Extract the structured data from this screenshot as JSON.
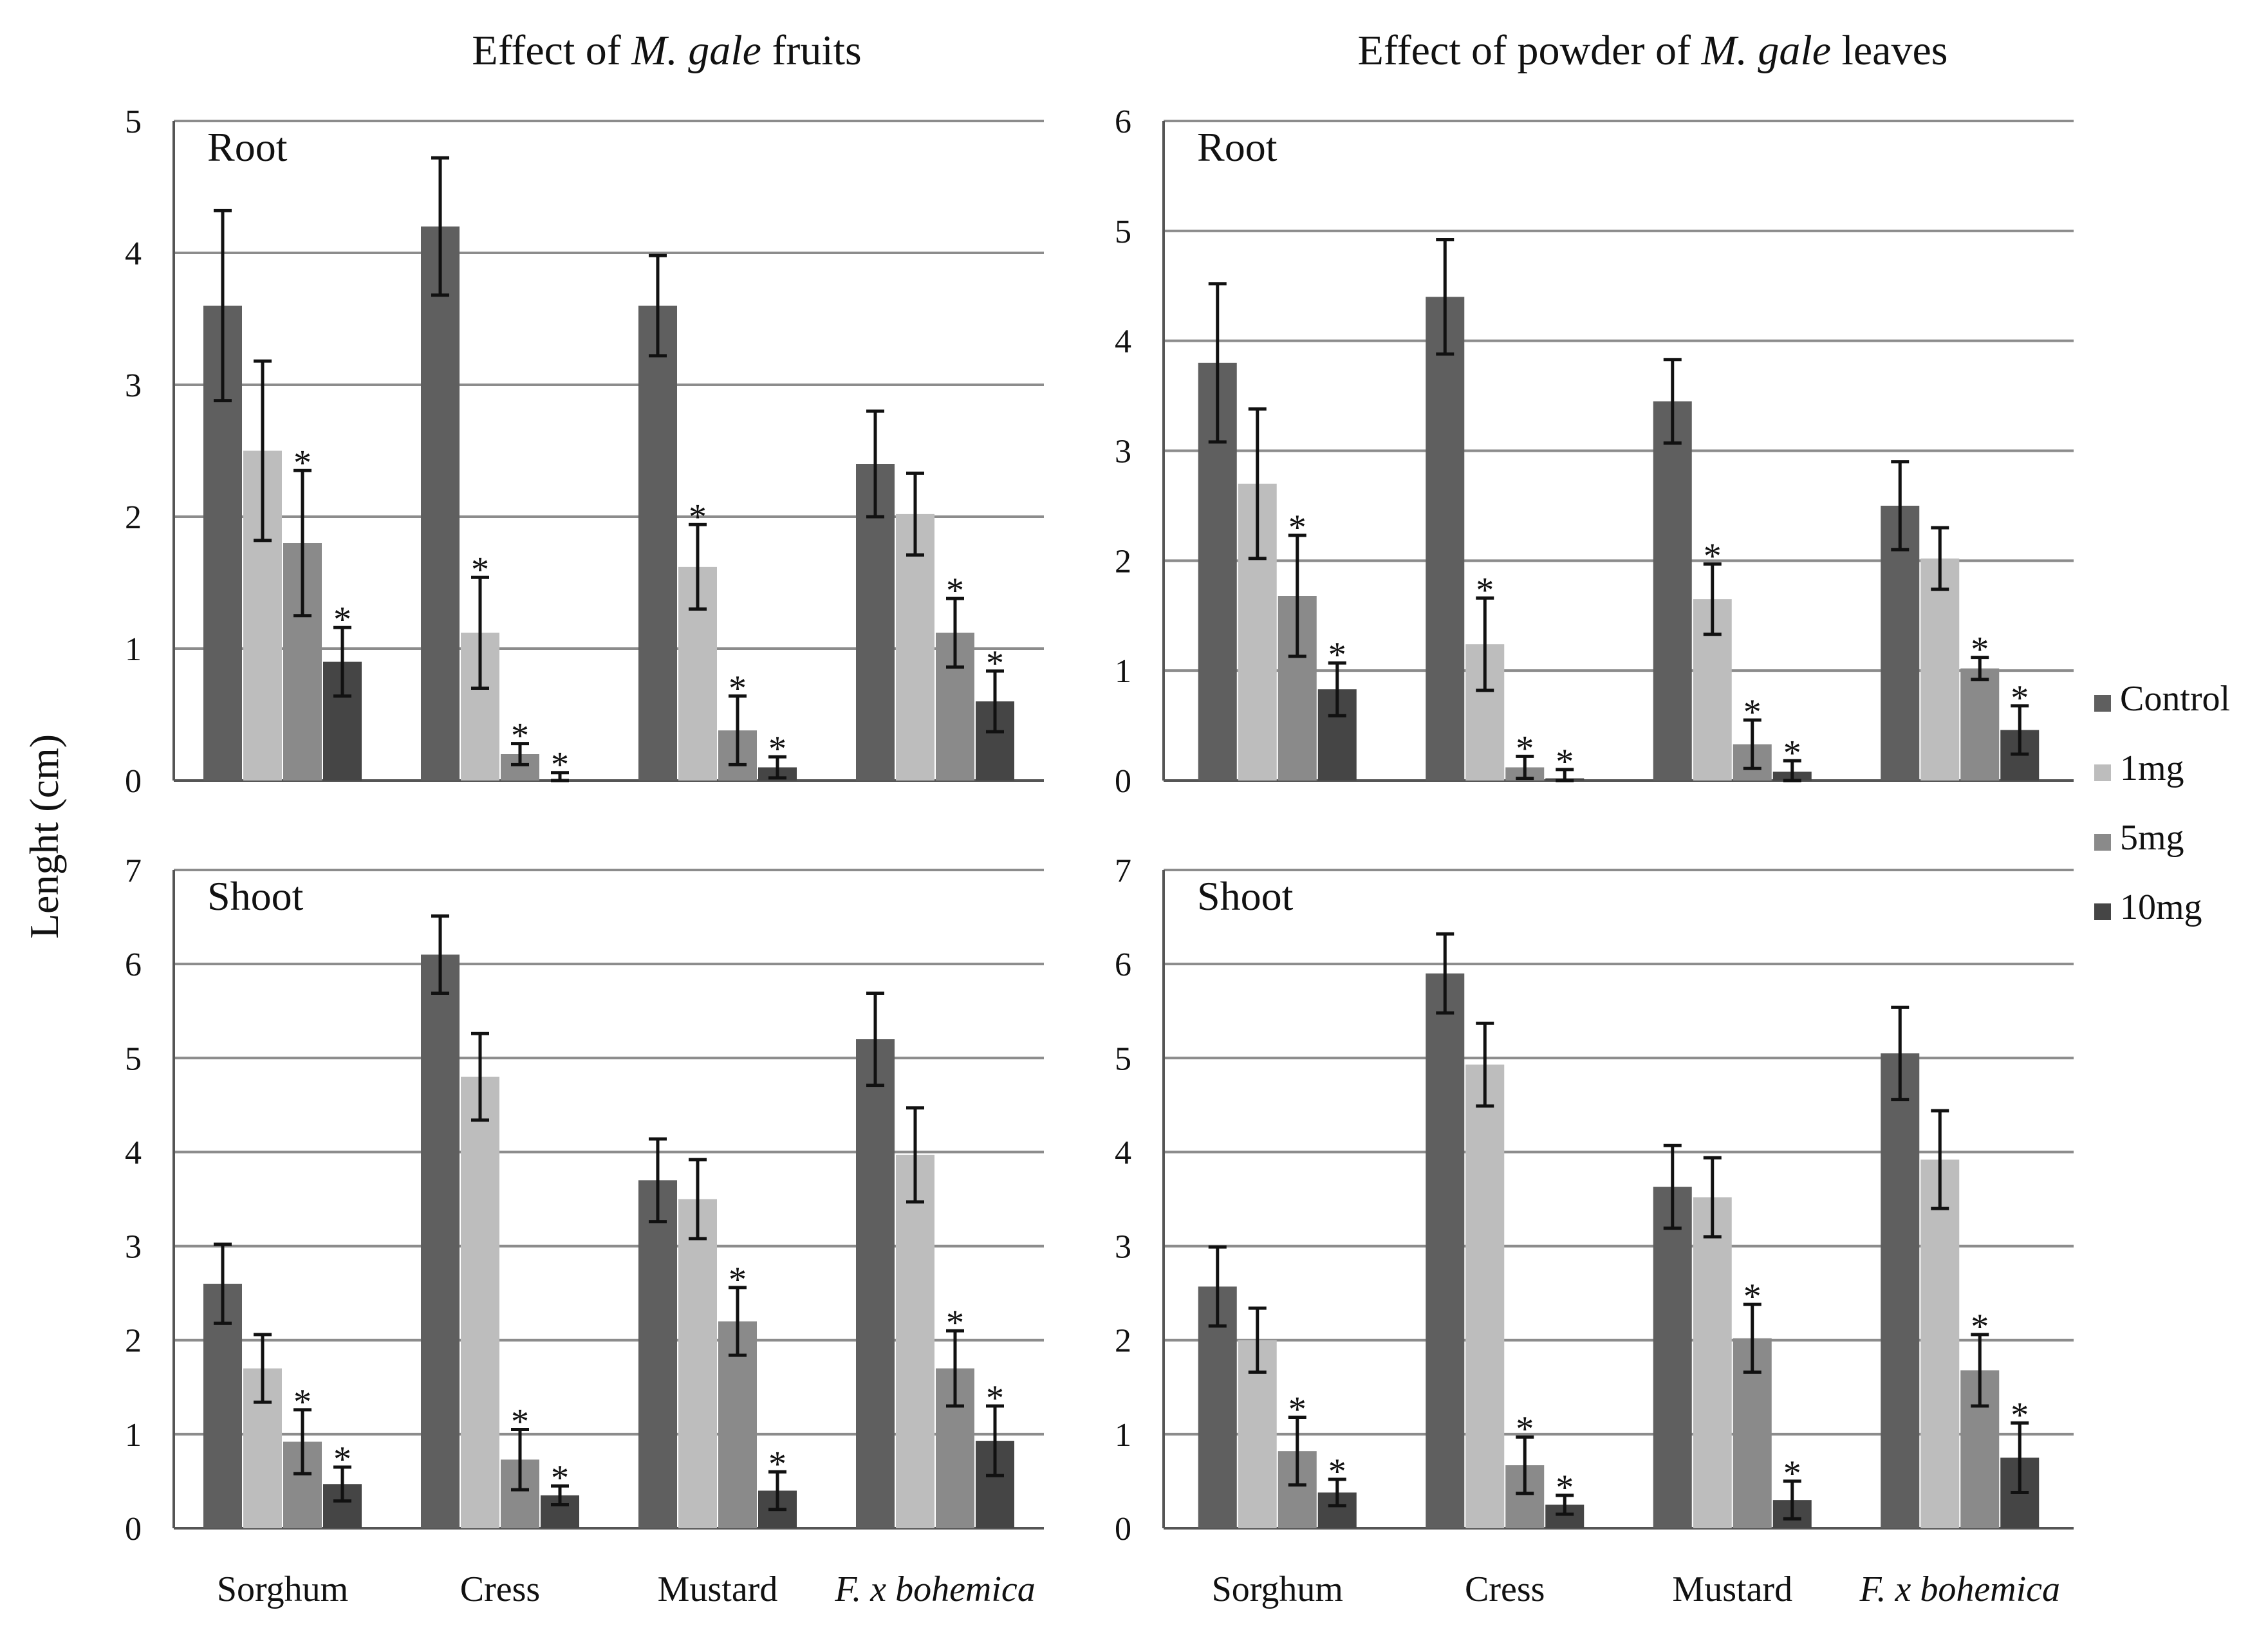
{
  "y_axis_label": "Lenght (cm)",
  "column_titles": [
    {
      "prefix": "Effect of ",
      "italic": "M. gale",
      "suffix": " fruits"
    },
    {
      "prefix": "Effect of powder of ",
      "italic": "M. gale",
      "suffix": " leaves"
    }
  ],
  "legend": [
    {
      "label": "Control",
      "color": "#5f5f5f"
    },
    {
      "label": "1mg",
      "color": "#bdbdbd"
    },
    {
      "label": "5mg",
      "color": "#8a8a8a"
    },
    {
      "label": "10mg",
      "color": "#454545"
    }
  ],
  "chart_data": [
    {
      "type": "bar",
      "column": 0,
      "row": 0,
      "panel_label": "Root",
      "categories": [
        "Sorghum",
        "Cress",
        "Mustard",
        "F. x bohemica"
      ],
      "ylim": [
        0,
        5
      ],
      "yticks": [
        0,
        1,
        2,
        3,
        4,
        5
      ],
      "series": [
        {
          "name": "Control",
          "values": [
            3.6,
            4.2,
            3.6,
            2.4
          ],
          "errors": [
            0.72,
            0.52,
            0.38,
            0.4
          ],
          "significant": [
            false,
            false,
            false,
            false
          ]
        },
        {
          "name": "1mg",
          "values": [
            2.5,
            1.12,
            1.62,
            2.02
          ],
          "errors": [
            0.68,
            0.42,
            0.32,
            0.31
          ],
          "significant": [
            false,
            true,
            true,
            false
          ]
        },
        {
          "name": "5mg",
          "values": [
            1.8,
            0.2,
            0.38,
            1.12
          ],
          "errors": [
            0.55,
            0.08,
            0.26,
            0.26
          ],
          "significant": [
            true,
            true,
            true,
            true
          ]
        },
        {
          "name": "10mg",
          "values": [
            0.9,
            0.0,
            0.1,
            0.6
          ],
          "errors": [
            0.26,
            0.06,
            0.08,
            0.23
          ],
          "significant": [
            true,
            true,
            true,
            true
          ]
        }
      ]
    },
    {
      "type": "bar",
      "column": 0,
      "row": 1,
      "panel_label": "Shoot",
      "categories": [
        "Sorghum",
        "Cress",
        "Mustard",
        "F. x bohemica"
      ],
      "ylim": [
        0,
        7
      ],
      "yticks": [
        0,
        1,
        2,
        3,
        4,
        5,
        6,
        7
      ],
      "series": [
        {
          "name": "Control",
          "values": [
            2.6,
            6.1,
            3.7,
            5.2
          ],
          "errors": [
            0.42,
            0.41,
            0.44,
            0.49
          ],
          "significant": [
            false,
            false,
            false,
            false
          ]
        },
        {
          "name": "1mg",
          "values": [
            1.7,
            4.8,
            3.5,
            3.97
          ],
          "errors": [
            0.36,
            0.46,
            0.42,
            0.5
          ],
          "significant": [
            false,
            false,
            false,
            false
          ]
        },
        {
          "name": "5mg",
          "values": [
            0.92,
            0.73,
            2.2,
            1.7
          ],
          "errors": [
            0.34,
            0.32,
            0.36,
            0.4
          ],
          "significant": [
            true,
            true,
            true,
            true
          ]
        },
        {
          "name": "10mg",
          "values": [
            0.47,
            0.35,
            0.4,
            0.93
          ],
          "errors": [
            0.18,
            0.1,
            0.2,
            0.37
          ],
          "significant": [
            true,
            true,
            true,
            true
          ]
        }
      ]
    },
    {
      "type": "bar",
      "column": 1,
      "row": 0,
      "panel_label": "Root",
      "categories": [
        "Sorghum",
        "Cress",
        "Mustard",
        "F. x bohemica"
      ],
      "ylim": [
        0,
        6
      ],
      "yticks": [
        0,
        1,
        2,
        3,
        4,
        5,
        6
      ],
      "series": [
        {
          "name": "Control",
          "values": [
            3.8,
            4.4,
            3.45,
            2.5
          ],
          "errors": [
            0.72,
            0.52,
            0.38,
            0.4
          ],
          "significant": [
            false,
            false,
            false,
            false
          ]
        },
        {
          "name": "1mg",
          "values": [
            2.7,
            1.24,
            1.65,
            2.02
          ],
          "errors": [
            0.68,
            0.42,
            0.32,
            0.28
          ],
          "significant": [
            false,
            true,
            true,
            false
          ]
        },
        {
          "name": "5mg",
          "values": [
            1.68,
            0.12,
            0.33,
            1.02
          ],
          "errors": [
            0.55,
            0.1,
            0.22,
            0.1
          ],
          "significant": [
            true,
            true,
            true,
            true
          ]
        },
        {
          "name": "10mg",
          "values": [
            0.83,
            0.02,
            0.08,
            0.46
          ],
          "errors": [
            0.24,
            0.08,
            0.1,
            0.22
          ],
          "significant": [
            true,
            true,
            true,
            true
          ]
        }
      ]
    },
    {
      "type": "bar",
      "column": 1,
      "row": 1,
      "panel_label": "Shoot",
      "categories": [
        "Sorghum",
        "Cress",
        "Mustard",
        "F. x bohemica"
      ],
      "ylim": [
        0,
        7
      ],
      "yticks": [
        0,
        1,
        2,
        3,
        4,
        5,
        6,
        7
      ],
      "series": [
        {
          "name": "Control",
          "values": [
            2.57,
            5.9,
            3.63,
            5.05
          ],
          "errors": [
            0.42,
            0.42,
            0.44,
            0.49
          ],
          "significant": [
            false,
            false,
            false,
            false
          ]
        },
        {
          "name": "1mg",
          "values": [
            2.0,
            4.93,
            3.52,
            3.92
          ],
          "errors": [
            0.34,
            0.44,
            0.42,
            0.52
          ],
          "significant": [
            false,
            false,
            false,
            false
          ]
        },
        {
          "name": "5mg",
          "values": [
            0.82,
            0.67,
            2.02,
            1.68
          ],
          "errors": [
            0.36,
            0.3,
            0.36,
            0.38
          ],
          "significant": [
            true,
            true,
            true,
            true
          ]
        },
        {
          "name": "10mg",
          "values": [
            0.38,
            0.25,
            0.3,
            0.75
          ],
          "errors": [
            0.14,
            0.1,
            0.2,
            0.37
          ],
          "significant": [
            true,
            true,
            true,
            true
          ]
        }
      ]
    }
  ]
}
